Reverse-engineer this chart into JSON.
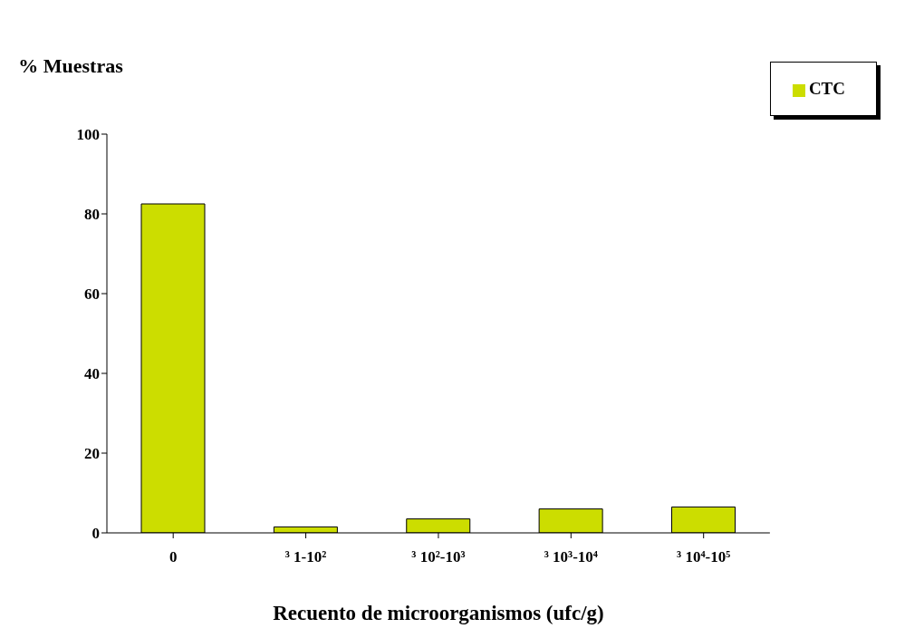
{
  "chart_data": {
    "type": "bar",
    "xlabel": "Recuento de microorganismos (ufc/g)",
    "ylabel": "% Muestras",
    "categories": [
      "0",
      "³ 1-10²",
      "³ 10²-10³",
      "³ 10³-10⁴",
      "³ 10⁴-10⁵"
    ],
    "series": [
      {
        "name": "CTC",
        "color": "#ccdd00",
        "values": [
          82.5,
          1.5,
          3.5,
          6,
          6.5
        ]
      }
    ],
    "ylim": [
      0,
      100
    ],
    "yticks": [
      0,
      20,
      40,
      60,
      80,
      100
    ],
    "legend": "top right"
  }
}
